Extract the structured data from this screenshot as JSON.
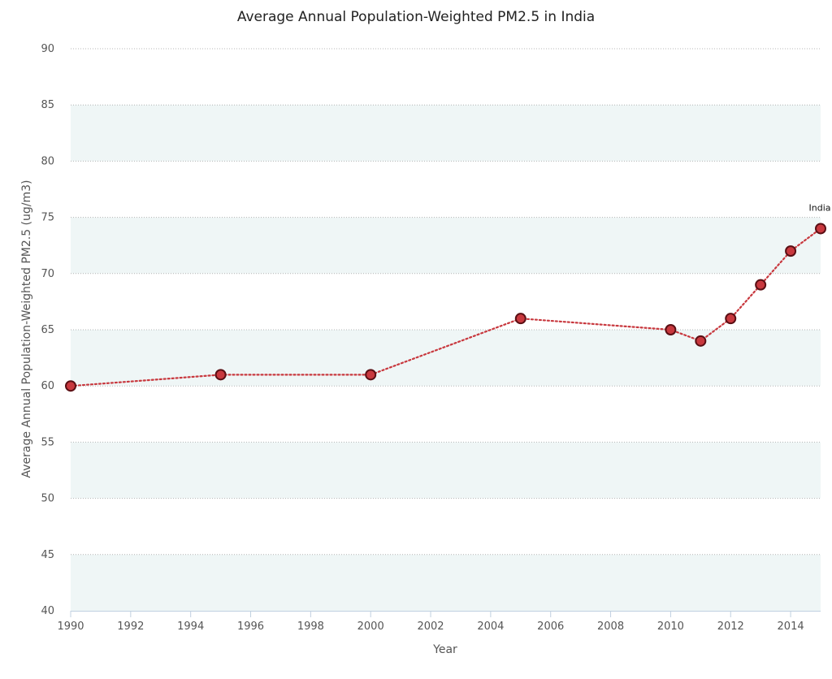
{
  "chart_data": {
    "type": "line",
    "title": "Average Annual Population-Weighted PM2.5 in India",
    "xlabel": "Year",
    "ylabel": "Average Annual Population-Weighted PM2.5 (ug/m3)",
    "xlim": [
      1990,
      2015
    ],
    "ylim": [
      40,
      90
    ],
    "x_ticks": [
      "1990",
      "1992",
      "1994",
      "1996",
      "1998",
      "2000",
      "2002",
      "2004",
      "2006",
      "2008",
      "2010",
      "2012",
      "2014"
    ],
    "y_ticks": [
      "40",
      "45",
      "50",
      "55",
      "60",
      "65",
      "70",
      "75",
      "80",
      "85",
      "90"
    ],
    "grid": true,
    "alternate_band_color": "#eff6f6",
    "series": [
      {
        "name": "India",
        "color": "#c8383e",
        "marker_edge": "#5a0f14",
        "line_style": "dotted",
        "x": [
          1990,
          1995,
          2000,
          2005,
          2010,
          2011,
          2012,
          2013,
          2014,
          2015
        ],
        "values": [
          60,
          61,
          61,
          66,
          65,
          64,
          66,
          69,
          72,
          74
        ]
      }
    ]
  }
}
